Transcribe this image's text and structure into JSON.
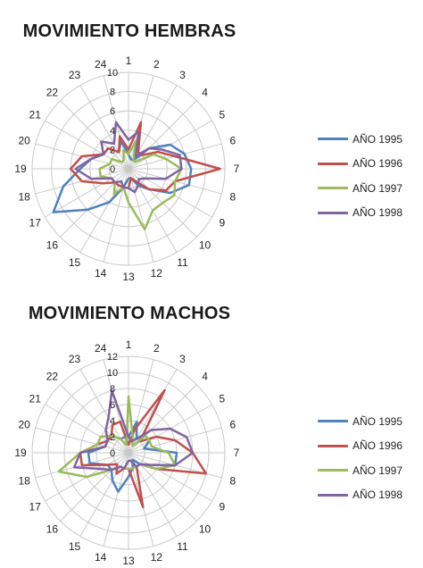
{
  "colors": {
    "series": [
      "#4F81BD",
      "#C0504D",
      "#9BBB59",
      "#8064A2"
    ],
    "grid": "#c8c8c8"
  },
  "chart_data": [
    {
      "type": "radar",
      "title": "MOVIMIENTO HEMBRAS",
      "categories": [
        "1",
        "2",
        "3",
        "4",
        "5",
        "6",
        "7",
        "8",
        "9",
        "10",
        "11",
        "12",
        "13",
        "14",
        "15",
        "16",
        "17",
        "18",
        "19",
        "20",
        "21",
        "22",
        "23",
        "24"
      ],
      "rlim": [
        0,
        10
      ],
      "ticks": [
        0,
        2,
        4,
        6,
        8,
        10
      ],
      "grid": true,
      "legend": "right",
      "series": [
        {
          "name": "AÑO 1995",
          "values": [
            1.5,
            1,
            1,
            3,
            5,
            6,
            6.5,
            6.5,
            5,
            3,
            2,
            1,
            1,
            2,
            4,
            6,
            9,
            7,
            5,
            4,
            3,
            3,
            2,
            3
          ]
        },
        {
          "name": "AÑO 1996",
          "values": [
            2,
            5,
            2,
            2,
            3.5,
            5,
            9.5,
            5,
            4.5,
            3,
            1.5,
            1,
            2,
            2,
            2,
            2,
            3,
            5,
            6,
            5,
            3,
            3,
            2,
            3.5
          ]
        },
        {
          "name": "AÑO 1997",
          "values": [
            1.5,
            3,
            1,
            1,
            3,
            4,
            5.5,
            5,
            5.5,
            5,
            5,
            6.5,
            3.5,
            2,
            3,
            2,
            2,
            3,
            3,
            2,
            2,
            1,
            1,
            2
          ]
        },
        {
          "name": "AÑO 1998",
          "values": [
            3,
            4,
            1.5,
            3,
            4,
            5.5,
            5.5,
            4,
            2,
            1.5,
            2,
            2.5,
            2,
            2,
            1.5,
            2,
            2,
            4,
            5.5,
            4,
            3,
            4,
            3,
            5
          ]
        }
      ]
    },
    {
      "type": "radar",
      "title": "MOVIMIENTO MACHOS",
      "categories": [
        "1",
        "2",
        "3",
        "4",
        "5",
        "6",
        "7",
        "8",
        "9",
        "10",
        "11",
        "12",
        "13",
        "14",
        "15",
        "16",
        "17",
        "18",
        "19",
        "20",
        "21",
        "22",
        "23",
        "24"
      ],
      "rlim": [
        0,
        12
      ],
      "ticks": [
        0,
        2,
        4,
        6,
        8,
        10,
        12
      ],
      "grid": true,
      "legend": "right",
      "series": [
        {
          "name": "AÑO 1995",
          "values": [
            2,
            4,
            2,
            3,
            3,
            2,
            6,
            6,
            3,
            2,
            1,
            2,
            3,
            5,
            4,
            3,
            3,
            5,
            5,
            3,
            3,
            3,
            2,
            2
          ]
        },
        {
          "name": "AÑO 1996",
          "values": [
            1,
            3,
            9,
            2,
            4,
            6,
            8,
            10,
            4,
            2,
            2,
            7,
            2,
            2,
            3,
            2,
            3,
            6,
            6,
            4,
            3,
            3,
            4,
            4
          ]
        },
        {
          "name": "AÑO 1997",
          "values": [
            7,
            2,
            1,
            3,
            3,
            3,
            5,
            6,
            4,
            2,
            2,
            2,
            2,
            2,
            2,
            3,
            6,
            9,
            6,
            4,
            4,
            3,
            2,
            1
          ]
        },
        {
          "name": "AÑO 1998",
          "values": [
            2,
            1.5,
            2,
            4,
            6,
            7.5,
            8,
            6,
            3,
            2,
            2,
            1,
            1,
            2,
            2,
            3,
            4,
            7,
            6,
            3,
            3,
            4,
            5,
            8
          ]
        }
      ]
    }
  ]
}
